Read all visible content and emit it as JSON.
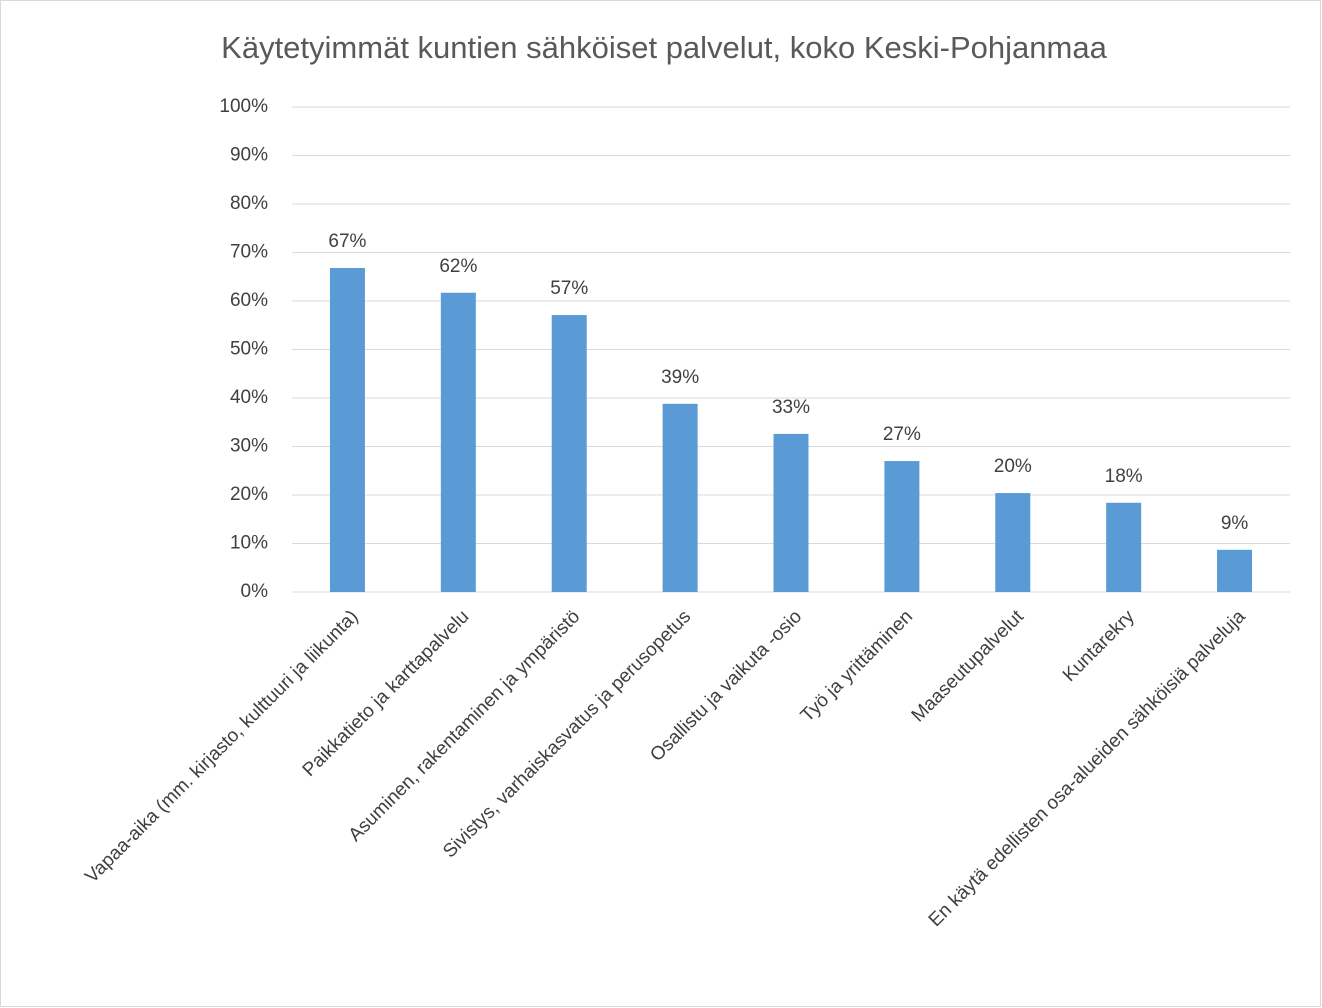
{
  "chart_data": {
    "type": "bar",
    "title": "Käytetyimmät kuntien sähköiset palvelut, koko Keski-Pohjanmaa",
    "categories": [
      "Vapaa-aika (mm. kirjasto, kulttuuri ja liikunta)",
      "Paikkatieto ja karttapalvelu",
      "Asuminen, rakentaminen ja ympäristö",
      "Sivistys, varhaiskasvatus ja perusopetus",
      "Osallistu ja vaikuta -osio",
      "Työ ja yrittäminen",
      "Maaseutupalvelut",
      "Kuntarekry",
      "En käytä edellisten osa-alueiden sähköisiä palveluja"
    ],
    "values": [
      66.8,
      61.7,
      57.1,
      38.8,
      32.6,
      27,
      20.4,
      18.4,
      8.7
    ],
    "value_labels": [
      "67%",
      "62%",
      "57%",
      "39%",
      "33%",
      "27%",
      "20%",
      "18%",
      "9%"
    ],
    "color": "#5b9bd5",
    "ylim": [
      0,
      100
    ],
    "yticks": [
      {
        "value": 0,
        "label": "0%"
      },
      {
        "value": 10,
        "label": "10%"
      },
      {
        "value": 20,
        "label": "20%"
      },
      {
        "value": 30,
        "label": "30%"
      },
      {
        "value": 40,
        "label": "40%"
      },
      {
        "value": 50,
        "label": "50%"
      },
      {
        "value": 60,
        "label": "60%"
      },
      {
        "value": 70,
        "label": "70%"
      },
      {
        "value": 80,
        "label": "80%"
      },
      {
        "value": 90,
        "label": "90%"
      },
      {
        "value": 100,
        "label": "100%"
      }
    ],
    "grid": true
  }
}
